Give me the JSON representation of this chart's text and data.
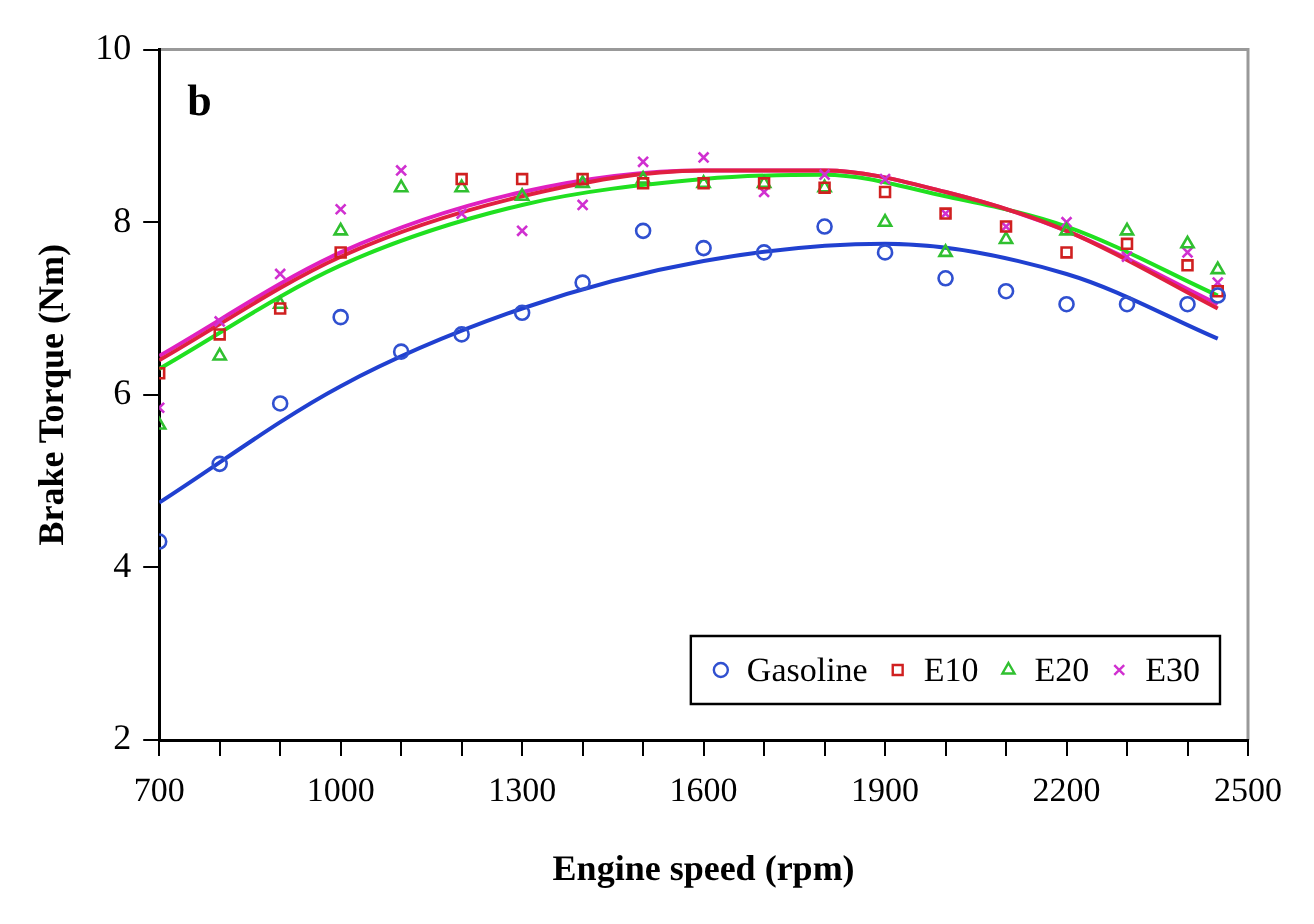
{
  "chart_data": {
    "type": "scatter",
    "annotations": [
      "b"
    ],
    "xlabel": "Engine speed (rpm)",
    "ylabel": "Brake Torque (Nm)",
    "xlim": [
      700,
      2500
    ],
    "ylim": [
      2,
      10
    ],
    "xticks": [
      700,
      {
        "value": 800,
        "label": null
      },
      {
        "value": 900,
        "label": null
      },
      1000,
      {
        "value": 1100,
        "label": null
      },
      {
        "value": 1200,
        "label": null
      },
      1300,
      {
        "value": 1400,
        "label": null
      },
      {
        "value": 1500,
        "label": null
      },
      1600,
      {
        "value": 1700,
        "label": null
      },
      {
        "value": 1800,
        "label": null
      },
      1900,
      {
        "value": 2000,
        "label": null
      },
      {
        "value": 2100,
        "label": null
      },
      2200,
      {
        "value": 2300,
        "label": null
      },
      {
        "value": 2400,
        "label": null
      },
      2500
    ],
    "yticks": [
      2,
      4,
      6,
      8,
      10
    ],
    "grid": false,
    "legend": "bottom right",
    "series": [
      {
        "name": "Gasoline",
        "type": "scatter",
        "marker": "circle",
        "color": "#3050d0",
        "x": [
          700,
          800,
          900,
          1000,
          1100,
          1200,
          1300,
          1400,
          1500,
          1600,
          1700,
          1800,
          1900,
          2000,
          2100,
          2200,
          2300,
          2400,
          2450
        ],
        "values": [
          4.3,
          5.2,
          5.9,
          6.9,
          6.5,
          6.7,
          6.95,
          7.3,
          7.9,
          7.7,
          7.65,
          7.95,
          7.65,
          7.35,
          7.2,
          7.05,
          7.05,
          7.05,
          7.15
        ]
      },
      {
        "name": "E10",
        "type": "scatter",
        "marker": "square",
        "color": "#d02020",
        "x": [
          700,
          800,
          900,
          1000,
          1100,
          1200,
          1300,
          1400,
          1500,
          1600,
          1700,
          1800,
          1900,
          2000,
          2100,
          2200,
          2300,
          2400,
          2450
        ],
        "values": [
          6.25,
          6.7,
          7.0,
          7.65,
          null,
          8.5,
          8.5,
          8.5,
          8.45,
          8.45,
          8.45,
          8.4,
          8.35,
          8.1,
          7.95,
          7.65,
          7.75,
          7.5,
          7.2
        ]
      },
      {
        "name": "E20",
        "type": "scatter",
        "marker": "triangle",
        "color": "#30c030",
        "x": [
          700,
          800,
          900,
          1000,
          1100,
          1200,
          1300,
          1400,
          1500,
          1600,
          1700,
          1800,
          1900,
          2000,
          2100,
          2200,
          2300,
          2400,
          2450
        ],
        "values": [
          5.65,
          6.45,
          7.05,
          7.9,
          8.4,
          8.4,
          8.3,
          8.45,
          8.5,
          8.45,
          8.45,
          8.4,
          8.0,
          7.65,
          7.8,
          7.9,
          7.9,
          7.75,
          7.45
        ]
      },
      {
        "name": "E30",
        "type": "scatter",
        "marker": "cross",
        "color": "#d030d0",
        "x": [
          700,
          800,
          900,
          1000,
          1100,
          1200,
          1300,
          1400,
          1500,
          1600,
          1700,
          1800,
          1900,
          2000,
          2100,
          2200,
          2300,
          2400,
          2450
        ],
        "values": [
          5.85,
          6.85,
          7.4,
          8.15,
          8.6,
          8.1,
          7.9,
          8.2,
          8.7,
          8.75,
          8.35,
          8.55,
          8.5,
          8.1,
          7.95,
          8.0,
          7.6,
          7.65,
          7.3
        ]
      },
      {
        "type": "line",
        "marker": "none",
        "color": "#2040d0",
        "x": [
          700,
          1000,
          1300,
          1600,
          1900,
          2200,
          2450
        ],
        "values": [
          4.75,
          6.1,
          7.0,
          7.55,
          7.75,
          7.4,
          6.65
        ]
      },
      {
        "type": "line",
        "marker": "none",
        "color": "#e02040",
        "x": [
          700,
          1000,
          1300,
          1600,
          1800,
          2000,
          2200,
          2450
        ],
        "values": [
          6.4,
          7.6,
          8.3,
          8.6,
          8.6,
          8.35,
          7.9,
          7.0
        ]
      },
      {
        "type": "line",
        "marker": "none",
        "color": "#20e020",
        "x": [
          700,
          1000,
          1300,
          1600,
          1800,
          2000,
          2200,
          2450
        ],
        "values": [
          6.3,
          7.5,
          8.2,
          8.5,
          8.55,
          8.3,
          7.95,
          7.15
        ]
      },
      {
        "type": "line",
        "marker": "none",
        "color": "#e020c0",
        "x": [
          700,
          1000,
          1300,
          1600,
          1800,
          2000,
          2200,
          2450
        ],
        "values": [
          6.45,
          7.65,
          8.35,
          8.6,
          8.6,
          8.35,
          7.9,
          7.05
        ]
      }
    ]
  }
}
